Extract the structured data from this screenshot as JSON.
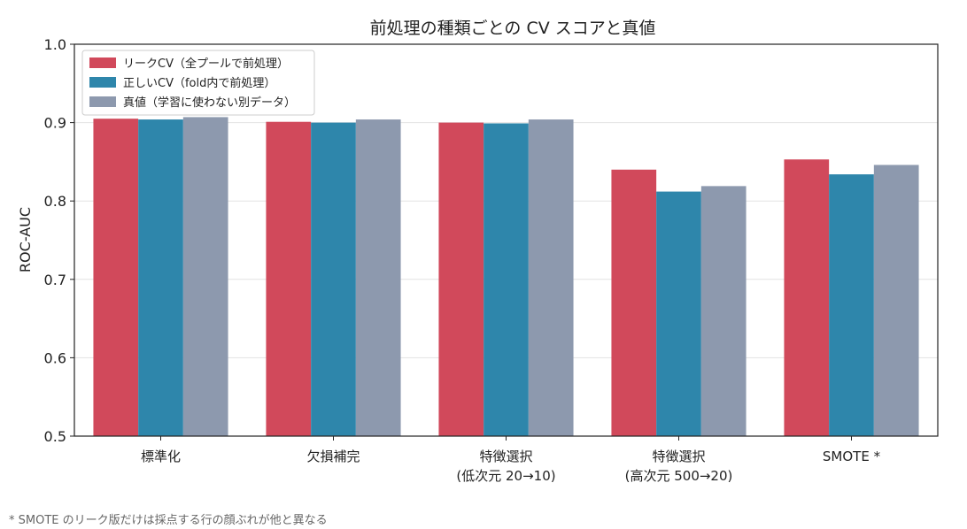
{
  "chart_data": {
    "type": "bar",
    "title": "前処理の種類ごとの CV スコアと真値",
    "xlabel": "",
    "ylabel": "ROC-AUC",
    "ylim": [
      0.5,
      1.0
    ],
    "yticks": [
      "0.5",
      "0.6",
      "0.7",
      "0.8",
      "0.9",
      "1.0"
    ],
    "grid": true,
    "legend_position": "top-left",
    "categories": [
      [
        "標準化"
      ],
      [
        "欠損補完"
      ],
      [
        "特徴選択",
        "(低次元 20→10)"
      ],
      [
        "特徴選択",
        "(高次元 500→20)"
      ],
      [
        "SMOTE *"
      ]
    ],
    "series": [
      {
        "name": "リークCV（全プールで前処理）",
        "color": "#d1495b",
        "values": [
          0.905,
          0.901,
          0.9,
          0.84,
          0.853
        ]
      },
      {
        "name": "正しいCV（fold内で前処理）",
        "color": "#2e86ab",
        "values": [
          0.904,
          0.9,
          0.899,
          0.812,
          0.834
        ]
      },
      {
        "name": "真値（学習に使わない別データ）",
        "color": "#8d99ae",
        "values": [
          0.907,
          0.904,
          0.904,
          0.819,
          0.846
        ]
      }
    ]
  },
  "footnote": "* SMOTE のリーク版だけは採点する行の顔ぶれが他と異なる"
}
